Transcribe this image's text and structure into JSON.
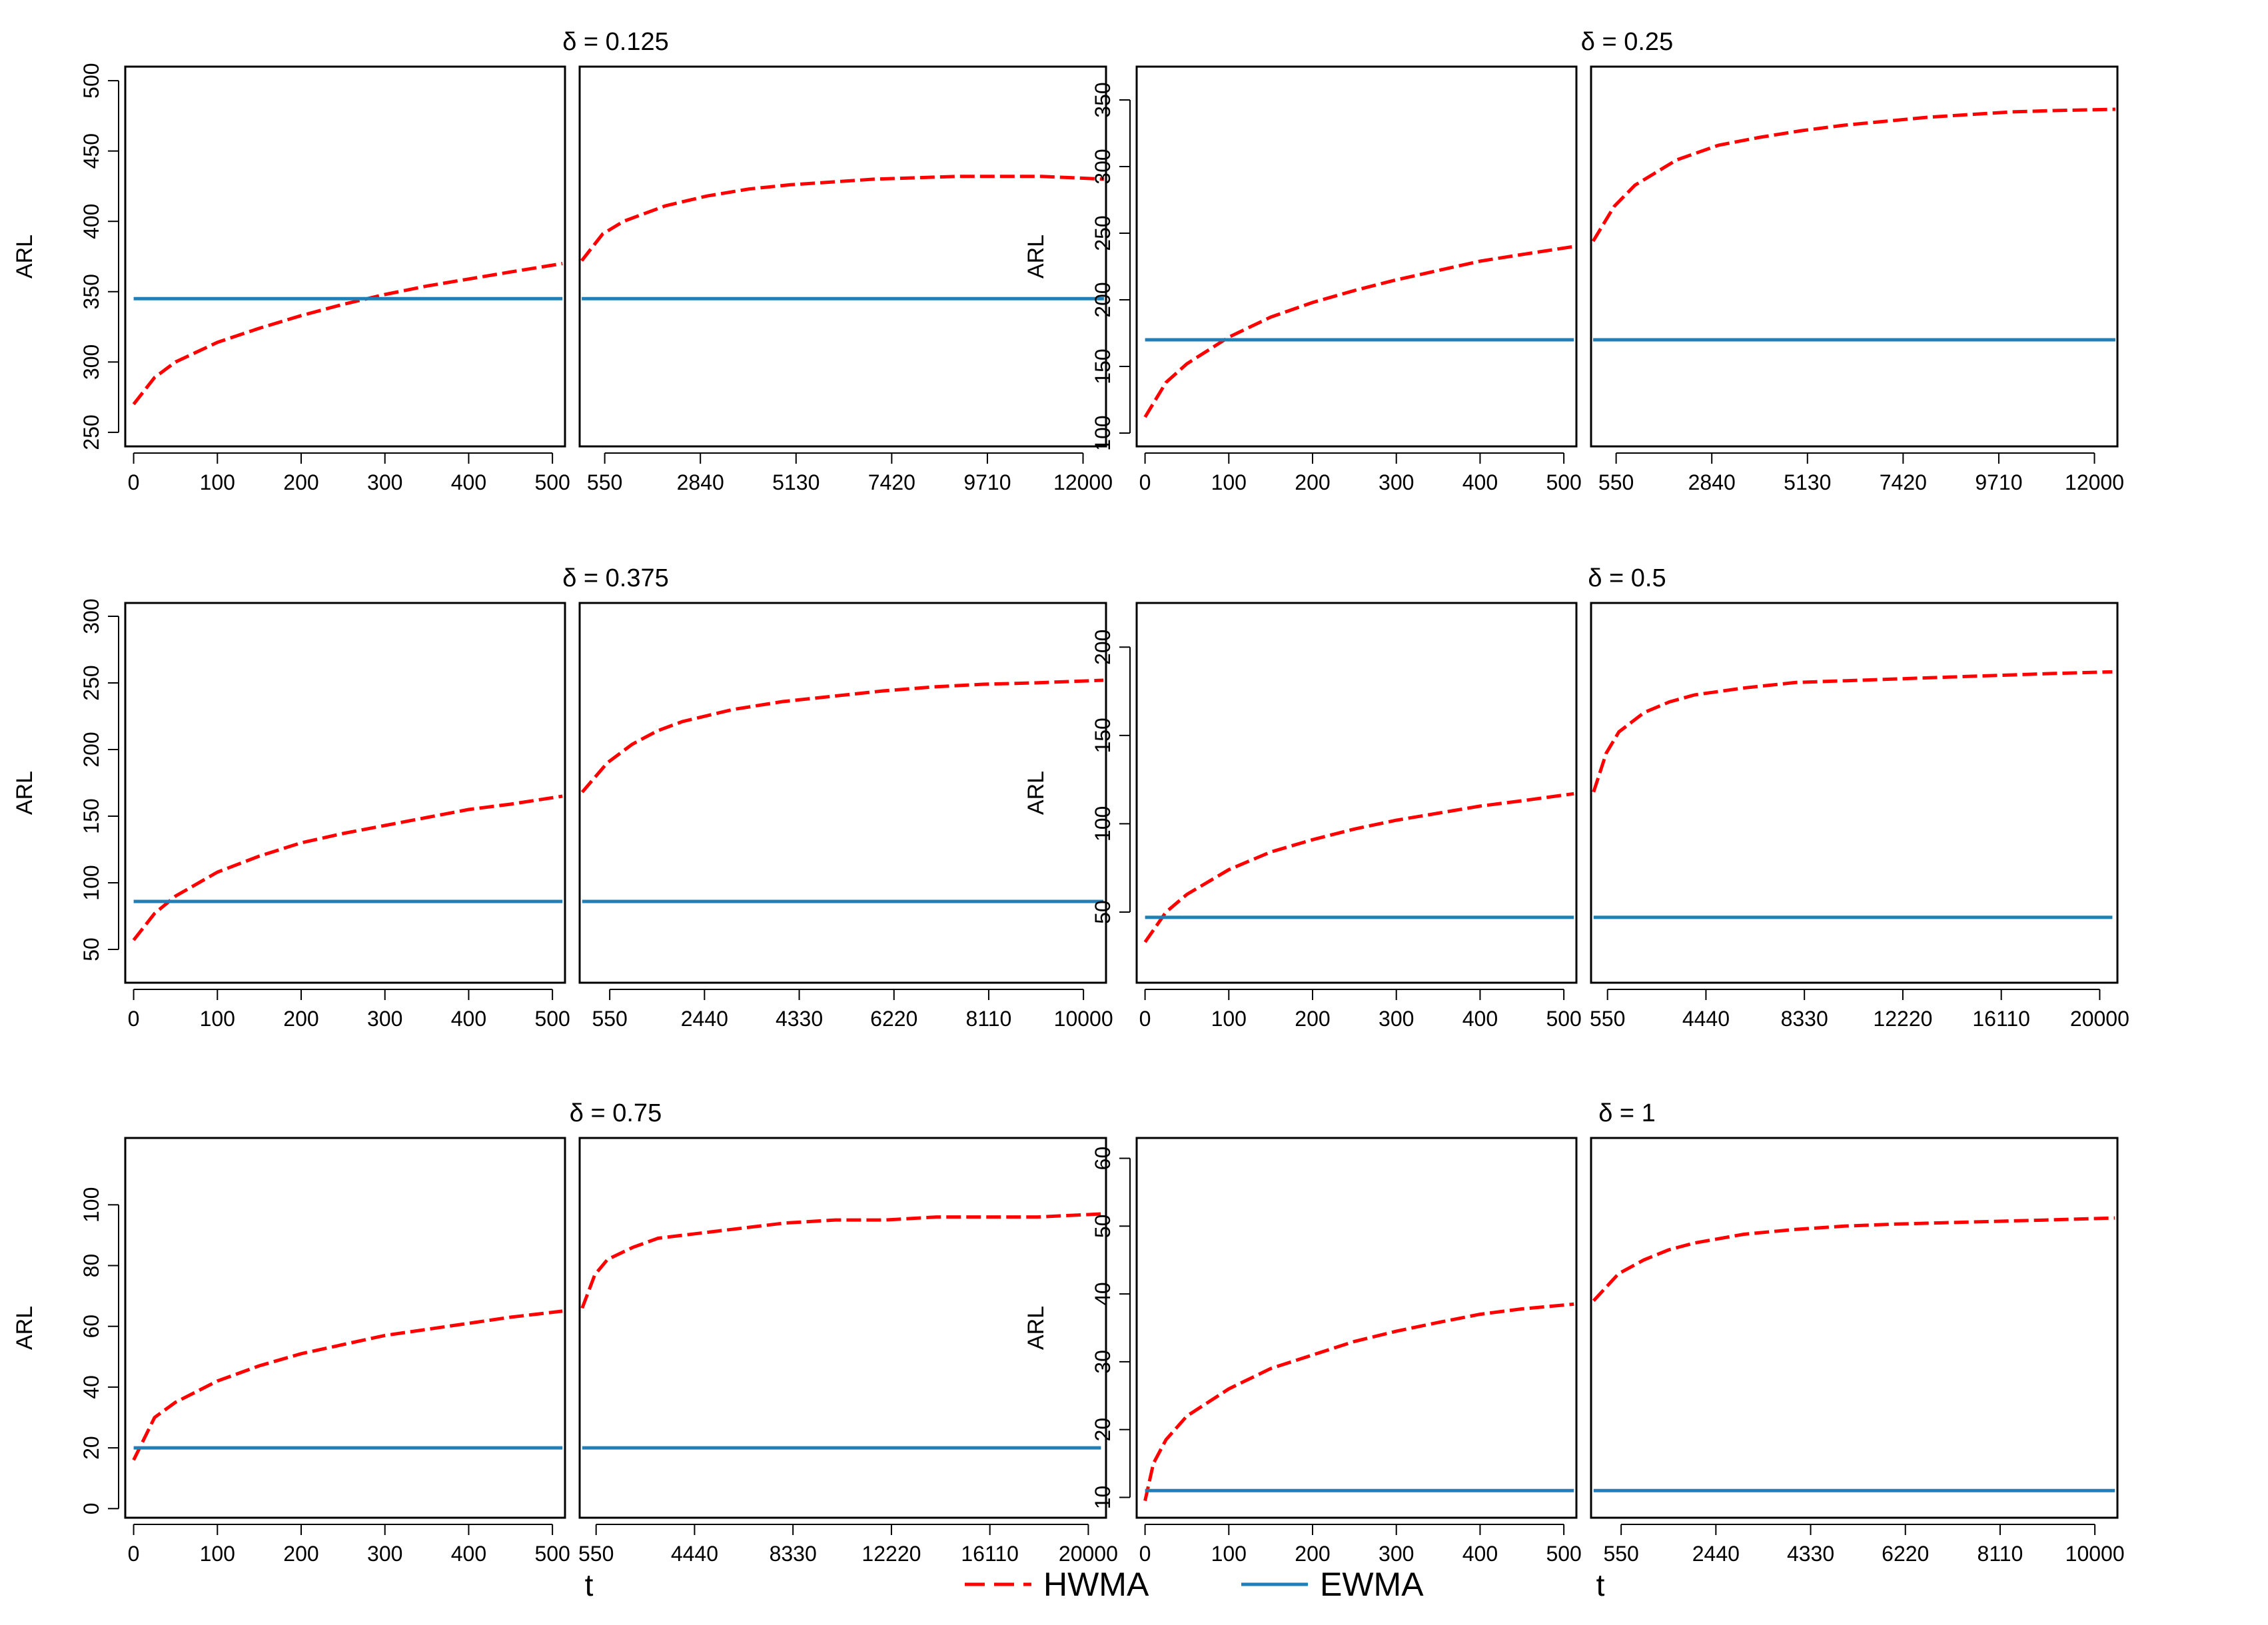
{
  "colors": {
    "hwma": "#ff0000",
    "ewma": "#1f7fb6",
    "frame": "#000000"
  },
  "x_label": "t",
  "y_label": "ARL",
  "legend": {
    "placement": "bottom-center",
    "items": [
      {
        "label": "HWMA",
        "color": "#ff0000",
        "style": "dashed"
      },
      {
        "label": "EWMA",
        "color": "#1f7fb6",
        "style": "solid"
      }
    ]
  },
  "chart_data": [
    {
      "type": "line",
      "title": "δ = 0.125",
      "ylim": [
        240,
        510
      ],
      "yticks": [
        250,
        300,
        350,
        400,
        450,
        500
      ],
      "left_panel": {
        "xlim": [
          -10,
          515
        ],
        "xticks": [
          0,
          100,
          200,
          300,
          400,
          500
        ],
        "series": [
          {
            "name": "HWMA",
            "x": [
              0,
              25,
              50,
              100,
              150,
              200,
              250,
              300,
              350,
              400,
              450,
              512
            ],
            "y": [
              270,
              289,
              300,
              314,
              324,
              333,
              341,
              348,
              354,
              359,
              364,
              370
            ]
          },
          {
            "name": "EWMA",
            "x": [
              0,
              512
            ],
            "y": [
              345,
              345
            ]
          }
        ]
      },
      "right_panel": {
        "xlim": [
          -50,
          12550
        ],
        "xticks": [
          550,
          2840,
          5130,
          7420,
          9710,
          12000
        ],
        "series": [
          {
            "name": "HWMA",
            "x": [
              0,
              500,
              1000,
              2000,
              3000,
              4000,
              5000,
              6000,
              7000,
              8000,
              9000,
              10000,
              11000,
              12500
            ],
            "y": [
              372,
              391,
              400,
              411,
              418,
              423,
              426,
              428,
              430,
              431,
              432,
              432,
              432,
              430
            ]
          },
          {
            "name": "EWMA",
            "x": [
              0,
              12500
            ],
            "y": [
              345,
              345
            ]
          }
        ]
      }
    },
    {
      "type": "line",
      "title": "δ = 0.25",
      "ylim": [
        90,
        375
      ],
      "yticks": [
        100,
        150,
        200,
        250,
        300,
        350
      ],
      "left_panel": {
        "xlim": [
          -10,
          515
        ],
        "xticks": [
          0,
          100,
          200,
          300,
          400,
          500
        ],
        "series": [
          {
            "name": "HWMA",
            "x": [
              0,
              25,
              50,
              100,
              150,
              200,
              250,
              300,
              350,
              400,
              450,
              512
            ],
            "y": [
              112,
              138,
              152,
              172,
              187,
              198,
              207,
              215,
              222,
              229,
              234,
              240
            ]
          },
          {
            "name": "EWMA",
            "x": [
              0,
              512
            ],
            "y": [
              170,
              170
            ]
          }
        ]
      },
      "right_panel": {
        "xlim": [
          -50,
          12550
        ],
        "xticks": [
          550,
          2840,
          5130,
          7420,
          9710,
          12000
        ],
        "series": [
          {
            "name": "HWMA",
            "x": [
              0,
              500,
              1000,
              2000,
              3000,
              4000,
              5000,
              6000,
              7000,
              8000,
              9000,
              10000,
              11000,
              12500
            ],
            "y": [
              244,
              270,
              286,
              305,
              316,
              322,
              327,
              331,
              334,
              337,
              339,
              341,
              342,
              343
            ]
          },
          {
            "name": "EWMA",
            "x": [
              0,
              12500
            ],
            "y": [
              170,
              170
            ]
          }
        ]
      }
    },
    {
      "type": "line",
      "title": "δ = 0.375",
      "ylim": [
        25,
        310
      ],
      "yticks": [
        50,
        100,
        150,
        200,
        250,
        300
      ],
      "left_panel": {
        "xlim": [
          -10,
          515
        ],
        "xticks": [
          0,
          100,
          200,
          300,
          400,
          500
        ],
        "series": [
          {
            "name": "HWMA",
            "x": [
              0,
              25,
              50,
              100,
              150,
              200,
              250,
              300,
              350,
              400,
              450,
              512
            ],
            "y": [
              57,
              77,
              90,
              108,
              120,
              130,
              137,
              143,
              149,
              155,
              159,
              165
            ]
          },
          {
            "name": "EWMA",
            "x": [
              0,
              512
            ],
            "y": [
              86,
              86
            ]
          }
        ]
      },
      "right_panel": {
        "xlim": [
          -50,
          10450
        ],
        "xticks": [
          550,
          2440,
          4330,
          6220,
          8110,
          10000
        ],
        "series": [
          {
            "name": "HWMA",
            "x": [
              0,
              500,
              1000,
              1500,
              2000,
              3000,
              4000,
              5000,
              6000,
              7000,
              8000,
              9000,
              10400
            ],
            "y": [
              168,
              190,
              204,
              214,
              221,
              230,
              236,
              240,
              244,
              247,
              249,
              250,
              252
            ]
          },
          {
            "name": "EWMA",
            "x": [
              0,
              10400
            ],
            "y": [
              86,
              86
            ]
          }
        ]
      }
    },
    {
      "type": "line",
      "title": "δ = 0.5",
      "ylim": [
        10,
        225
      ],
      "yticks": [
        50,
        100,
        150,
        200
      ],
      "left_panel": {
        "xlim": [
          -10,
          515
        ],
        "xticks": [
          0,
          100,
          200,
          300,
          400,
          500
        ],
        "series": [
          {
            "name": "HWMA",
            "x": [
              0,
              25,
              50,
              100,
              150,
              200,
              250,
              300,
              350,
              400,
              450,
              512
            ],
            "y": [
              33,
              50,
              60,
              74,
              84,
              91,
              97,
              102,
              106,
              110,
              113,
              117
            ]
          },
          {
            "name": "EWMA",
            "x": [
              0,
              512
            ],
            "y": [
              47,
              47
            ]
          }
        ]
      },
      "right_panel": {
        "xlim": [
          -100,
          20700
        ],
        "xticks": [
          550,
          4440,
          8330,
          12220,
          16110,
          20000
        ],
        "series": [
          {
            "name": "HWMA",
            "x": [
              0,
              500,
              1000,
              2000,
              3000,
              4000,
              6000,
              8000,
              10000,
              12000,
              14000,
              16000,
              18000,
              20500
            ],
            "y": [
              118,
              140,
              152,
              163,
              169,
              173,
              177,
              180,
              181,
              182,
              183,
              184,
              185,
              186
            ]
          },
          {
            "name": "EWMA",
            "x": [
              0,
              20500
            ],
            "y": [
              47,
              47
            ]
          }
        ]
      }
    },
    {
      "type": "line",
      "title": "δ = 0.75",
      "ylim": [
        -3,
        122
      ],
      "yticks": [
        0,
        20,
        40,
        60,
        80,
        100
      ],
      "left_panel": {
        "xlim": [
          -10,
          515
        ],
        "xticks": [
          0,
          100,
          200,
          300,
          400,
          500
        ],
        "series": [
          {
            "name": "HWMA",
            "x": [
              0,
              25,
              50,
              100,
              150,
              200,
              250,
              300,
              350,
              400,
              450,
              512
            ],
            "y": [
              16,
              30,
              35,
              42,
              47,
              51,
              54,
              57,
              59,
              61,
              63,
              65
            ]
          },
          {
            "name": "EWMA",
            "x": [
              0,
              512
            ],
            "y": [
              20,
              20
            ]
          }
        ]
      },
      "right_panel": {
        "xlim": [
          -100,
          20700
        ],
        "xticks": [
          550,
          4440,
          8330,
          12220,
          16110,
          20000
        ],
        "series": [
          {
            "name": "HWMA",
            "x": [
              0,
              500,
              1000,
              2000,
              3000,
              4000,
              6000,
              8000,
              10000,
              12000,
              14000,
              16000,
              18000,
              20500
            ],
            "y": [
              66,
              77,
              82,
              86,
              89,
              90,
              92,
              94,
              95,
              95,
              96,
              96,
              96,
              97
            ]
          },
          {
            "name": "EWMA",
            "x": [
              0,
              20500
            ],
            "y": [
              20,
              20
            ]
          }
        ]
      }
    },
    {
      "type": "line",
      "title": "δ = 1",
      "ylim": [
        7,
        63
      ],
      "yticks": [
        10,
        20,
        30,
        40,
        50,
        60
      ],
      "left_panel": {
        "xlim": [
          -10,
          515
        ],
        "xticks": [
          0,
          100,
          200,
          300,
          400,
          500
        ],
        "series": [
          {
            "name": "HWMA",
            "x": [
              0,
              10,
              25,
              50,
              100,
              150,
              200,
              250,
              300,
              350,
              400,
              450,
              512
            ],
            "y": [
              9.5,
              15,
              18.5,
              22,
              26,
              29,
              31,
              33,
              34.5,
              35.8,
              37,
              37.8,
              38.5
            ]
          },
          {
            "name": "EWMA",
            "x": [
              0,
              512
            ],
            "y": [
              11,
              11
            ]
          }
        ]
      },
      "right_panel": {
        "xlim": [
          -50,
          10450
        ],
        "xticks": [
          550,
          2440,
          4330,
          6220,
          8110,
          10000
        ],
        "series": [
          {
            "name": "HWMA",
            "x": [
              0,
              500,
              1000,
              1500,
              2000,
              3000,
              4000,
              5000,
              6000,
              7000,
              8000,
              9000,
              10400
            ],
            "y": [
              39,
              43,
              45,
              46.5,
              47.5,
              48.8,
              49.5,
              50,
              50.3,
              50.5,
              50.7,
              50.9,
              51.2
            ]
          },
          {
            "name": "EWMA",
            "x": [
              0,
              10400
            ],
            "y": [
              11,
              11
            ]
          }
        ]
      }
    }
  ]
}
